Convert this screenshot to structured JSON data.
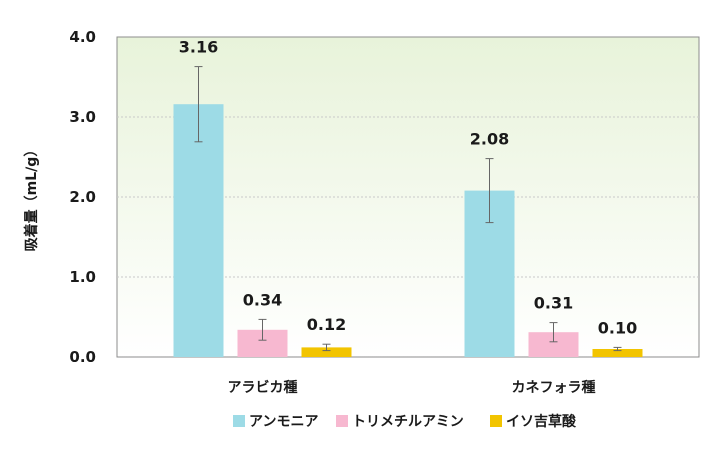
{
  "chart_data": {
    "type": "bar",
    "ylabel": "吸着量（mL/g）",
    "ylim": [
      0,
      4.0
    ],
    "yticks": [
      "0.0",
      "1.0",
      "2.0",
      "3.0",
      "4.0"
    ],
    "categories": [
      "アラビカ種",
      "カネフォラ種"
    ],
    "series": [
      {
        "name": "アンモニア",
        "color": "#9ddbe6",
        "values": [
          3.16,
          2.08
        ],
        "labels": [
          "3.16",
          "2.08"
        ],
        "errors": [
          0.47,
          0.4
        ]
      },
      {
        "name": "トリメチルアミン",
        "color": "#f7b8d0",
        "values": [
          0.34,
          0.31
        ],
        "labels": [
          "0.34",
          "0.31"
        ],
        "errors": [
          0.13,
          0.12
        ]
      },
      {
        "name": "イソ吉草酸",
        "color": "#f2c400",
        "values": [
          0.12,
          0.1
        ],
        "labels": [
          "0.12",
          "0.10"
        ],
        "errors": [
          0.04,
          0.02
        ]
      }
    ],
    "grid": true,
    "legend": "bottom",
    "background_gradient": [
      "#e8f3da",
      "#ffffff"
    ]
  }
}
